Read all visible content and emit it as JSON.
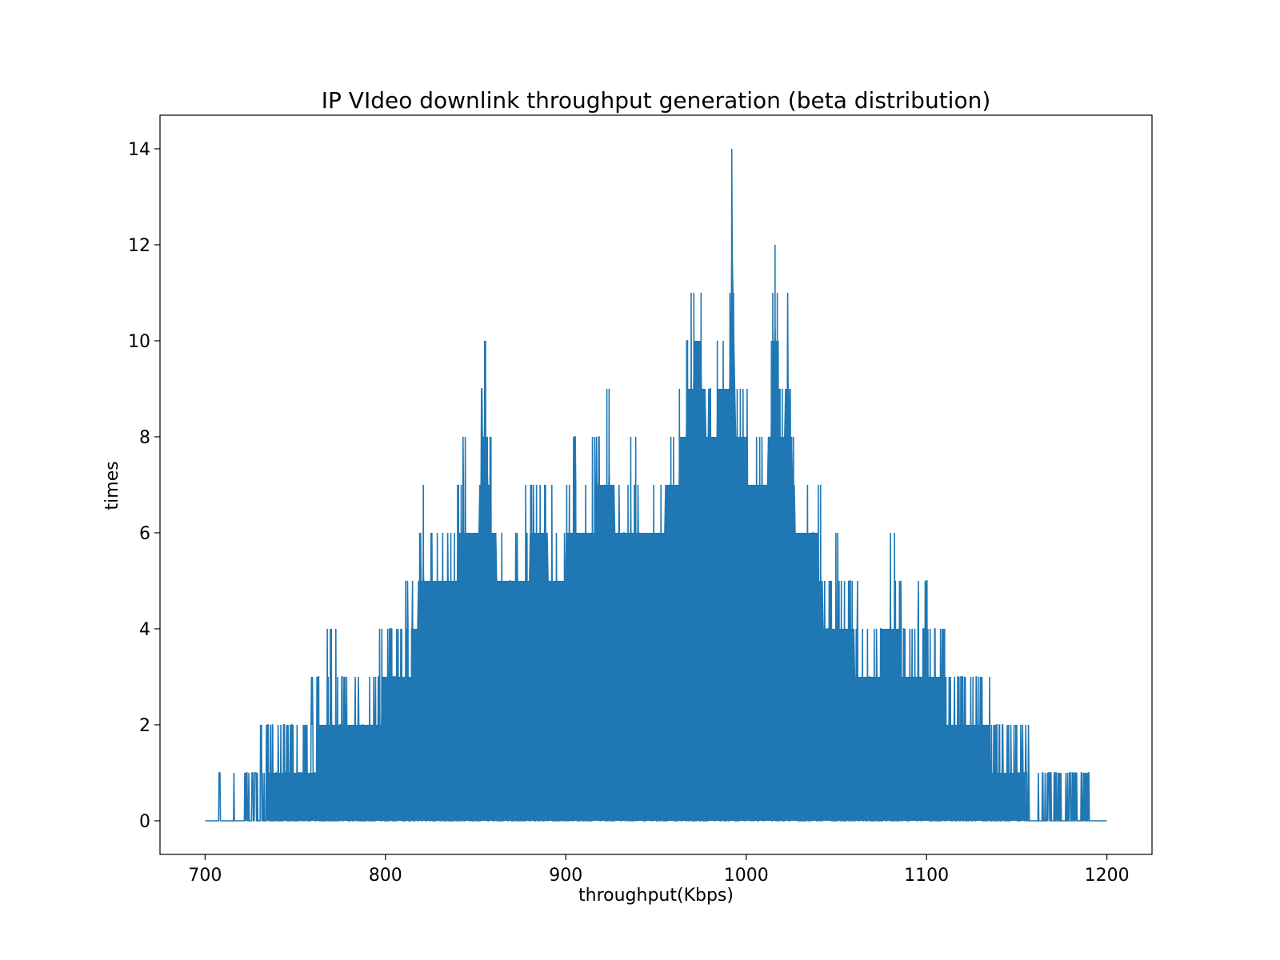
{
  "chart_data": {
    "type": "line",
    "title": "IP VIdeo downlink throughput generation (beta distribution)",
    "xlabel": "throughput(Kbps)",
    "ylabel": "times",
    "xlim": [
      675,
      1225
    ],
    "ylim": [
      -0.7,
      14.7
    ],
    "xticks": [
      700,
      800,
      900,
      1000,
      1100,
      1200
    ],
    "yticks": [
      0,
      2,
      4,
      6,
      8,
      10,
      12,
      14
    ],
    "grid": false,
    "legend": "none",
    "color": "#1f77b4",
    "x_range": [
      700,
      1200
    ],
    "envelope": [
      [
        700,
        0
      ],
      [
        707,
        0
      ],
      [
        708,
        1
      ],
      [
        716,
        1
      ],
      [
        722,
        1
      ],
      [
        725,
        1
      ],
      [
        735,
        2
      ],
      [
        745,
        2
      ],
      [
        755,
        2
      ],
      [
        762,
        3
      ],
      [
        770,
        4
      ],
      [
        780,
        3
      ],
      [
        790,
        3
      ],
      [
        798,
        4
      ],
      [
        805,
        4
      ],
      [
        815,
        5
      ],
      [
        821,
        7
      ],
      [
        830,
        6
      ],
      [
        840,
        7
      ],
      [
        843,
        8
      ],
      [
        850,
        7
      ],
      [
        855,
        10
      ],
      [
        858,
        8
      ],
      [
        865,
        6
      ],
      [
        870,
        6
      ],
      [
        880,
        7
      ],
      [
        890,
        7
      ],
      [
        895,
        6
      ],
      [
        905,
        8
      ],
      [
        910,
        7
      ],
      [
        917,
        8
      ],
      [
        924,
        9
      ],
      [
        930,
        7
      ],
      [
        936,
        8
      ],
      [
        945,
        7
      ],
      [
        950,
        7
      ],
      [
        955,
        8
      ],
      [
        963,
        9
      ],
      [
        967,
        10
      ],
      [
        971,
        11
      ],
      [
        975,
        11
      ],
      [
        980,
        9
      ],
      [
        984,
        10
      ],
      [
        989,
        10
      ],
      [
        991,
        11
      ],
      [
        992,
        14
      ],
      [
        995,
        9
      ],
      [
        998,
        9
      ],
      [
        1005,
        8
      ],
      [
        1010,
        8
      ],
      [
        1014,
        10
      ],
      [
        1016,
        12
      ],
      [
        1020,
        9
      ],
      [
        1023,
        11
      ],
      [
        1027,
        8
      ],
      [
        1030,
        7
      ],
      [
        1035,
        7
      ],
      [
        1040,
        7
      ],
      [
        1045,
        5
      ],
      [
        1050,
        6
      ],
      [
        1055,
        5
      ],
      [
        1060,
        5
      ],
      [
        1065,
        4
      ],
      [
        1070,
        4
      ],
      [
        1075,
        5
      ],
      [
        1080,
        6
      ],
      [
        1085,
        5
      ],
      [
        1090,
        4
      ],
      [
        1100,
        5
      ],
      [
        1105,
        4
      ],
      [
        1110,
        4
      ],
      [
        1115,
        3
      ],
      [
        1125,
        3
      ],
      [
        1135,
        3
      ],
      [
        1140,
        2
      ],
      [
        1150,
        2
      ],
      [
        1155,
        2
      ],
      [
        1160,
        1
      ],
      [
        1170,
        1
      ],
      [
        1180,
        1
      ],
      [
        1185,
        1
      ],
      [
        1190,
        1
      ],
      [
        1191,
        0
      ],
      [
        1200,
        0
      ]
    ],
    "series": [
      {
        "values_note_x": [
          708,
          716,
          722,
          735,
          762,
          770,
          798,
          821,
          843,
          855,
          858,
          905,
          917,
          924,
          936,
          963,
          967,
          971,
          975,
          984,
          991,
          992,
          995,
          1014,
          1016,
          1023,
          1040,
          1080,
          1100,
          1110,
          1135,
          1155,
          1190
        ],
        "values": [
          1,
          1,
          1,
          2,
          3,
          4,
          4,
          7,
          8,
          10,
          8,
          8,
          8,
          9,
          8,
          9,
          10,
          11,
          11,
          10,
          11,
          14,
          9,
          10,
          12,
          11,
          7,
          6,
          5,
          4,
          3,
          2,
          1
        ]
      }
    ]
  }
}
